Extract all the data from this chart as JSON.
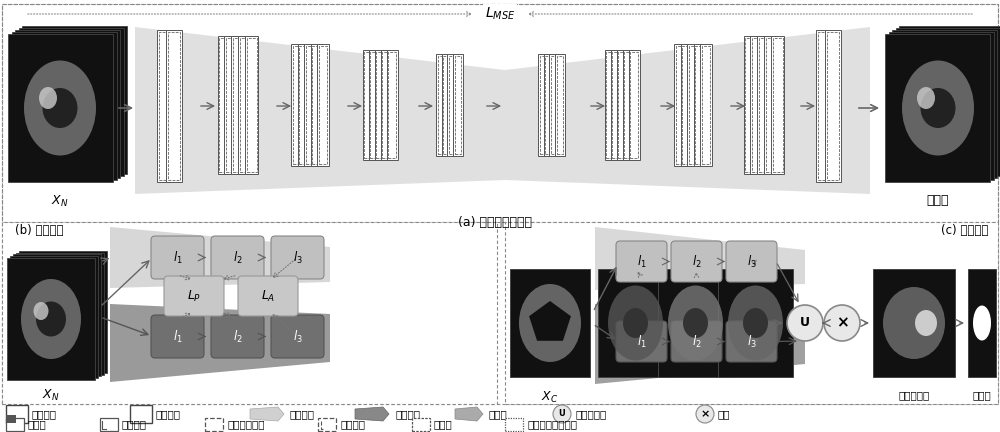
{
  "bg_color": "#ffffff",
  "panel_a_label": "(a) 教师网络预训练",
  "panel_b_label": "(b) 知识蒸馏",
  "panel_c_label": "(c) 异常分割",
  "lmse_label": "$L_{MSE}$",
  "xn_label": "$X_N$",
  "xc_label": "$X_C$",
  "rebuild_label": "重建图",
  "anomaly_map_label": "异常定位图",
  "binarize_label": "二值化",
  "lp_label": "$L_P$",
  "la_label": "$L_A$",
  "legend_train": "训练阶段",
  "legend_test": "测试阶段",
  "legend_teacher": "教师网络",
  "legend_student": "学生网络",
  "legend_decoder": "解码器",
  "legend_bilinear": "双线性插值",
  "legend_multiply": "相乘",
  "legend_conv": "卷积层",
  "legend_bn": "批标准化",
  "legend_relu": "整流线性单元",
  "legend_maxpool": "最大池化",
  "legend_upsample": "上采样",
  "legend_tanh": "双曲正切激活函数"
}
